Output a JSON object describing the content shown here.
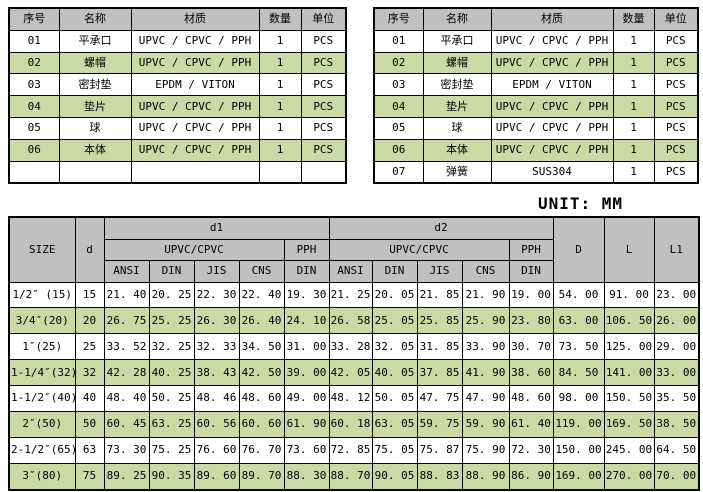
{
  "unit_label": "UNIT: MM",
  "colors": {
    "header_bg": "#c0c0c0",
    "stripe_bg": "#cbd9a4",
    "border": "#000000",
    "page_bg": "#ffffff"
  },
  "parts_tables": [
    {
      "position": "left",
      "headers": [
        "序号",
        "名称",
        "材质",
        "数量",
        "单位"
      ],
      "rows": [
        [
          "01",
          "平承口",
          "UPVC / CPVC / PPH",
          "1",
          "PCS"
        ],
        [
          "02",
          "螺帽",
          "UPVC / CPVC / PPH",
          "1",
          "PCS"
        ],
        [
          "03",
          "密封垫",
          "EPDM / VITON",
          "1",
          "PCS"
        ],
        [
          "04",
          "垫片",
          "UPVC / CPVC / PPH",
          "1",
          "PCS"
        ],
        [
          "05",
          "球",
          "UPVC / CPVC / PPH",
          "1",
          "PCS"
        ],
        [
          "06",
          "本体",
          "UPVC / CPVC / PPH",
          "1",
          "PCS"
        ],
        [
          "",
          "",
          "",
          "",
          ""
        ]
      ]
    },
    {
      "position": "right",
      "headers": [
        "序号",
        "名称",
        "材质",
        "数量",
        "单位"
      ],
      "rows": [
        [
          "01",
          "平承口",
          "UPVC / CPVC / PPH",
          "1",
          "PCS"
        ],
        [
          "02",
          "螺帽",
          "UPVC / CPVC / PPH",
          "1",
          "PCS"
        ],
        [
          "03",
          "密封垫",
          "EPDM / VITON",
          "1",
          "PCS"
        ],
        [
          "04",
          "垫片",
          "UPVC / CPVC / PPH",
          "1",
          "PCS"
        ],
        [
          "05",
          "球",
          "UPVC / CPVC / PPH",
          "1",
          "PCS"
        ],
        [
          "06",
          "本体",
          "UPVC / CPVC / PPH",
          "1",
          "PCS"
        ],
        [
          "07",
          "弹簧",
          "SUS304",
          "1",
          "PCS"
        ]
      ]
    }
  ],
  "dimension_table": {
    "corner_headers": {
      "size": "SIZE",
      "d": "d",
      "D": "D",
      "L": "L",
      "L1": "L1"
    },
    "span_headers": {
      "d1": "d1",
      "d2": "d2"
    },
    "group_headers": {
      "material": "UPVC/CPVC",
      "pph": "PPH"
    },
    "standard_headers": [
      "ANSI",
      "DIN",
      "JIS",
      "CNS",
      "DIN"
    ],
    "rows": [
      [
        "1/2″ (15)",
        "15",
        "21.40",
        "20.25",
        "22.30",
        "22.40",
        "19.30",
        "21.25",
        "20.05",
        "21.85",
        "21.90",
        "19.00",
        "54.00",
        "91.00",
        "23.00"
      ],
      [
        "3/4″(20)",
        "20",
        "26.75",
        "25.25",
        "26.30",
        "26.40",
        "24.10",
        "26.58",
        "25.05",
        "25.85",
        "25.90",
        "23.80",
        "63.00",
        "106.50",
        "26.00"
      ],
      [
        "1″(25)",
        "25",
        "33.52",
        "32.25",
        "32.33",
        "34.50",
        "31.00",
        "33.28",
        "32.05",
        "31.85",
        "33.90",
        "30.70",
        "73.50",
        "125.00",
        "29.00"
      ],
      [
        "1-1/4″(32)",
        "32",
        "42.28",
        "40.25",
        "38.43",
        "42.50",
        "39.00",
        "42.05",
        "40.05",
        "37.85",
        "41.90",
        "38.60",
        "84.50",
        "141.00",
        "33.00"
      ],
      [
        "1-1/2″(40)",
        "40",
        "48.40",
        "50.25",
        "48.46",
        "48.60",
        "49.00",
        "48.12",
        "50.05",
        "47.75",
        "47.90",
        "48.60",
        "98.00",
        "150.50",
        "35.50"
      ],
      [
        "2″(50)",
        "50",
        "60.45",
        "63.25",
        "60.56",
        "60.60",
        "61.90",
        "60.18",
        "63.05",
        "59.75",
        "59.90",
        "61.40",
        "119.00",
        "169.50",
        "38.50"
      ],
      [
        "2-1/2″(65)",
        "63",
        "73.30",
        "75.25",
        "76.60",
        "76.70",
        "73.60",
        "72.85",
        "75.05",
        "75.87",
        "75.90",
        "72.30",
        "150.00",
        "245.00",
        "64.50"
      ],
      [
        "3″(80)",
        "75",
        "89.25",
        "90.35",
        "89.60",
        "89.70",
        "88.30",
        "88.70",
        "90.05",
        "88.83",
        "88.90",
        "86.90",
        "169.00",
        "270.00",
        "70.00"
      ]
    ]
  }
}
